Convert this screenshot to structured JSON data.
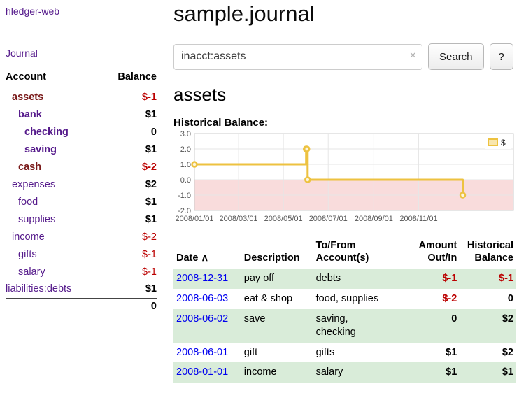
{
  "app": {
    "title": "hledger-web",
    "journal_link": "Journal"
  },
  "sidebar": {
    "header": {
      "account": "Account",
      "balance": "Balance"
    },
    "accounts": [
      {
        "name": "assets",
        "balance": "$-1",
        "depth": 1,
        "name_color": "maroon",
        "name_bold": true,
        "neg": true,
        "bal_bold": true
      },
      {
        "name": "bank",
        "balance": "$1",
        "depth": 2,
        "name_color": "purple",
        "name_bold": true,
        "neg": false,
        "bal_bold": true
      },
      {
        "name": "checking",
        "balance": "0",
        "depth": 3,
        "name_color": "purple",
        "name_bold": true,
        "neg": false,
        "bal_bold": true
      },
      {
        "name": "saving",
        "balance": "$1",
        "depth": 3,
        "name_color": "purple",
        "name_bold": true,
        "neg": false,
        "bal_bold": true
      },
      {
        "name": "cash",
        "balance": "$-2",
        "depth": 2,
        "name_color": "maroon",
        "name_bold": true,
        "neg": true,
        "bal_bold": true
      },
      {
        "name": "expenses",
        "balance": "$2",
        "depth": 1,
        "name_color": "purple",
        "name_bold": false,
        "neg": false,
        "bal_bold": true
      },
      {
        "name": "food",
        "balance": "$1",
        "depth": 2,
        "name_color": "purple",
        "name_bold": false,
        "neg": false,
        "bal_bold": true
      },
      {
        "name": "supplies",
        "balance": "$1",
        "depth": 2,
        "name_color": "purple",
        "name_bold": false,
        "neg": false,
        "bal_bold": true
      },
      {
        "name": "income",
        "balance": "$-2",
        "depth": 1,
        "name_color": "purple",
        "name_bold": false,
        "neg": true,
        "bal_bold": false
      },
      {
        "name": "gifts",
        "balance": "$-1",
        "depth": 2,
        "name_color": "purple",
        "name_bold": false,
        "neg": true,
        "bal_bold": false
      },
      {
        "name": "salary",
        "balance": "$-1",
        "depth": 2,
        "name_color": "purple",
        "name_bold": false,
        "neg": true,
        "bal_bold": false
      },
      {
        "name": "liabilities:debts",
        "balance": "$1",
        "depth": 0,
        "name_color": "purple",
        "name_bold": false,
        "neg": false,
        "bal_bold": true
      }
    ],
    "total": "0"
  },
  "main": {
    "title": "sample.journal",
    "search": {
      "value": "inacct:assets",
      "clear_icon": "×",
      "button": "Search",
      "help": "?"
    },
    "account_heading": "assets"
  },
  "chart_data": {
    "type": "line",
    "step": true,
    "title": "Historical Balance:",
    "series": [
      {
        "name": "$",
        "points": [
          {
            "date": "2008-01-01",
            "value": 1
          },
          {
            "date": "2008-06-01",
            "value": 2
          },
          {
            "date": "2008-06-02",
            "value": 2
          },
          {
            "date": "2008-06-03",
            "value": 0
          },
          {
            "date": "2008-12-31",
            "value": -1
          }
        ]
      }
    ],
    "x_range": [
      "2008-01-01",
      "2009-03-10"
    ],
    "ylim": [
      -2,
      3
    ],
    "yticks": [
      -2,
      -1,
      0,
      1,
      2,
      3
    ],
    "xticks": [
      {
        "label": "2008/01/01",
        "date": "2008-01-01"
      },
      {
        "label": "2008/03/01",
        "date": "2008-03-01"
      },
      {
        "label": "2008/05/01",
        "date": "2008-05-01"
      },
      {
        "label": "2008/07/01",
        "date": "2008-07-01"
      },
      {
        "label": "2008/09/01",
        "date": "2008-09-01"
      },
      {
        "label": "2008/11/01",
        "date": "2008-11-01"
      }
    ],
    "legend": {
      "position": "top-right",
      "label": "$"
    },
    "colors": {
      "line": "#edc240",
      "marker_fill": "#fdf6dd",
      "negative_region": "#f9dcdc",
      "grid": "#e6e6e6",
      "border": "#cccccc"
    }
  },
  "register": {
    "sort_icon": "∧",
    "headers": [
      {
        "id": "date",
        "lines": [
          "Date"
        ],
        "sort": true
      },
      {
        "id": "desc",
        "lines": [
          "Description"
        ],
        "sort": false
      },
      {
        "id": "acct",
        "lines": [
          "To/From",
          "Account(s)"
        ],
        "sort": false
      },
      {
        "id": "amt",
        "lines": [
          "Amount",
          "Out/In"
        ],
        "sort": false
      },
      {
        "id": "bal",
        "lines": [
          "Historical",
          "Balance"
        ],
        "sort": false
      }
    ],
    "rows": [
      {
        "date": "2008-12-31",
        "description": "pay off",
        "accounts": [
          "debts"
        ],
        "amount": "$-1",
        "amount_neg": true,
        "balance": "$-1",
        "balance_neg": true
      },
      {
        "date": "2008-06-03",
        "description": "eat & shop",
        "accounts": [
          "food, supplies"
        ],
        "amount": "$-2",
        "amount_neg": true,
        "balance": "0",
        "balance_neg": false
      },
      {
        "date": "2008-06-02",
        "description": "save",
        "accounts": [
          "saving,",
          "checking"
        ],
        "amount": "0",
        "amount_neg": false,
        "balance": "$2",
        "balance_neg": false
      },
      {
        "date": "2008-06-01",
        "description": "gift",
        "accounts": [
          "gifts"
        ],
        "amount": "$1",
        "amount_neg": false,
        "balance": "$2",
        "balance_neg": false
      },
      {
        "date": "2008-01-01",
        "description": "income",
        "accounts": [
          "salary"
        ],
        "amount": "$1",
        "amount_neg": false,
        "balance": "$1",
        "balance_neg": false
      }
    ]
  }
}
